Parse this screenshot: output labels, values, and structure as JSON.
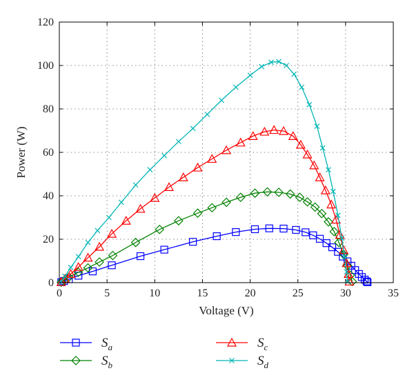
{
  "chart_data": {
    "type": "line",
    "xlabel": "Voltage (V)",
    "ylabel": "Power (W)",
    "xlim": [
      0,
      35
    ],
    "ylim": [
      0,
      120
    ],
    "xticks": [
      "0",
      "5",
      "10",
      "15",
      "20",
      "25",
      "30",
      "35"
    ],
    "yticks": [
      "0",
      "20",
      "40",
      "60",
      "80",
      "100",
      "120"
    ],
    "grid": true,
    "legend_position": "bottom",
    "series": [
      {
        "name": "S",
        "subscript": "a",
        "color": "#0000ff",
        "marker": "square",
        "x": [
          0.2,
          0.5,
          1.0,
          2.0,
          3.5,
          5.5,
          8.5,
          11.0,
          14.0,
          16.5,
          18.5,
          20.5,
          22.0,
          23.5,
          24.8,
          25.8,
          26.6,
          27.3,
          28.0,
          28.6,
          29.2,
          29.7,
          30.2,
          30.6,
          31.0,
          31.4,
          31.7,
          32.0,
          32.2,
          32.3
        ],
        "y": [
          0.2,
          0.8,
          1.6,
          3.2,
          5.2,
          8.0,
          12.2,
          15.2,
          18.8,
          21.4,
          23.3,
          24.6,
          25.0,
          24.9,
          24.3,
          23.2,
          21.8,
          20.2,
          18.2,
          16.3,
          14.2,
          12.0,
          9.8,
          7.8,
          5.8,
          4.0,
          2.6,
          1.4,
          0.6,
          0.2
        ]
      },
      {
        "name": "S",
        "subscript": "b",
        "color": "#008000",
        "marker": "diamond",
        "x": [
          0.2,
          0.5,
          1.0,
          2.0,
          3.0,
          4.2,
          5.6,
          8.0,
          10.5,
          12.5,
          14.5,
          16.0,
          17.5,
          19.0,
          20.5,
          21.8,
          23.0,
          24.2,
          25.2,
          26.0,
          26.8,
          27.5,
          28.2,
          28.8,
          29.3,
          29.8,
          30.2,
          30.5,
          30.7
        ],
        "y": [
          0.2,
          1.0,
          2.5,
          4.8,
          6.8,
          9.5,
          12.5,
          18.5,
          24.5,
          28.5,
          32.0,
          34.5,
          37.0,
          39.3,
          41.2,
          41.8,
          41.6,
          40.8,
          39.3,
          37.2,
          34.8,
          31.8,
          28.0,
          23.5,
          18.5,
          13.0,
          7.8,
          3.5,
          0.5
        ]
      },
      {
        "name": "S",
        "subscript": "c",
        "color": "#ff0000",
        "marker": "triangle",
        "x": [
          0.2,
          0.6,
          1.2,
          2.0,
          3.0,
          4.2,
          5.5,
          7.0,
          8.5,
          10.0,
          11.5,
          13.0,
          14.5,
          16.0,
          17.5,
          19.0,
          20.3,
          21.5,
          22.5,
          23.5,
          24.5,
          25.3,
          26.0,
          26.7,
          27.3,
          27.9,
          28.5,
          29.0,
          29.4,
          29.8,
          30.1,
          30.3,
          30.4
        ],
        "y": [
          0.3,
          1.8,
          4.0,
          7.2,
          11.5,
          16.5,
          22.5,
          28.5,
          34.0,
          39.0,
          44.0,
          48.5,
          53.0,
          57.0,
          61.0,
          64.5,
          67.5,
          69.5,
          70.3,
          69.8,
          67.5,
          63.5,
          59.0,
          54.0,
          48.5,
          42.5,
          36.0,
          29.0,
          22.0,
          15.0,
          9.0,
          4.0,
          0.5
        ]
      },
      {
        "name": "S",
        "subscript": "d",
        "color": "#00b5b5",
        "marker": "x",
        "x": [
          0.2,
          0.6,
          1.2,
          2.0,
          3.0,
          4.0,
          5.2,
          6.5,
          8.0,
          9.5,
          11.0,
          12.5,
          14.0,
          15.5,
          17.0,
          18.5,
          20.0,
          21.2,
          22.2,
          23.0,
          23.8,
          24.6,
          25.4,
          26.2,
          27.0,
          27.6,
          28.2,
          28.7,
          29.2,
          29.6,
          29.9,
          30.1,
          30.2
        ],
        "y": [
          0.5,
          3.0,
          7.0,
          12.0,
          18.5,
          24.0,
          30.0,
          37.0,
          45.0,
          52.0,
          58.5,
          65.0,
          71.0,
          77.5,
          84.0,
          90.0,
          95.5,
          99.5,
          101.5,
          101.8,
          100.0,
          96.0,
          90.0,
          82.0,
          72.0,
          62.0,
          52.0,
          42.0,
          31.0,
          20.5,
          12.0,
          5.0,
          0.5
        ]
      }
    ]
  }
}
